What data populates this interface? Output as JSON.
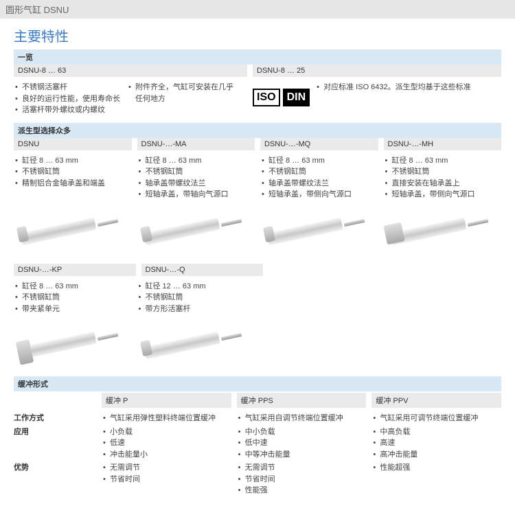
{
  "header": "圆形气缸 DSNU",
  "main_title": "主要特性",
  "overview": {
    "label": "一览",
    "range1": "DSNU-8 … 63",
    "range2": "DSNU-8 … 25",
    "col1": [
      "不锈钢活塞杆",
      "良好的运行性能，使用寿命长",
      "活塞杆带外螺纹或内螺纹"
    ],
    "col2": [
      "附件齐全，气缸可安装在几乎任何地方"
    ],
    "iso": "ISO",
    "din": "DIN",
    "col3": [
      "对应标准 ISO 6432。派生型均基于这些标准"
    ]
  },
  "variants_label": "派生型选择众多",
  "variants": [
    {
      "code": "DSNU",
      "items": [
        "缸径 8 … 63 mm",
        "不锈钢缸筒",
        "精制铝合金轴承盖和端盖"
      ]
    },
    {
      "code": "DSNU-…-MA",
      "items": [
        "缸径 8 … 63 mm",
        "不锈钢缸筒",
        "轴承盖带螺纹法兰",
        "短轴承盖，带轴向气源口"
      ]
    },
    {
      "code": "DSNU-…-MQ",
      "items": [
        "缸径 8 … 63 mm",
        "不锈钢缸筒",
        "轴承盖带螺纹法兰",
        "短轴承盖，带侧向气源口"
      ]
    },
    {
      "code": "DSNU-…-MH",
      "items": [
        "缸径 8 … 63 mm",
        "不锈钢缸筒",
        "直接安装在轴承盖上",
        "短轴承盖，带侧向气源口"
      ]
    }
  ],
  "variants2": [
    {
      "code": "DSNU-…-KP",
      "items": [
        "缸径 8 … 63 mm",
        "不锈钢缸筒",
        "带夹紧单元"
      ]
    },
    {
      "code": "DSNU-…-Q",
      "items": [
        "缸径 12 … 63 mm",
        "不锈钢缸筒",
        "带方形活塞杆"
      ]
    }
  ],
  "cushion": {
    "label": "缓冲形式",
    "headers": [
      "缓冲 P",
      "缓冲 PPS",
      "缓冲 PPV"
    ],
    "rows": [
      {
        "label": "工作方式",
        "cols": [
          [
            "气缸采用弹性塑料终端位置缓冲"
          ],
          [
            "气缸采用自调节终端位置缓冲"
          ],
          [
            "气缸采用可调节终端位置缓冲"
          ]
        ]
      },
      {
        "label": "应用",
        "cols": [
          [
            "小负载",
            "低速",
            "冲击能量小"
          ],
          [
            "中小负载",
            "低中速",
            "中等冲击能量"
          ],
          [
            "中高负载",
            "高速",
            "高冲击能量"
          ]
        ]
      },
      {
        "label": "优势",
        "cols": [
          [
            "无需调节",
            "节省时间"
          ],
          [
            "无需调节",
            "节省时间",
            "性能强"
          ],
          [
            "性能超强"
          ]
        ]
      }
    ]
  }
}
